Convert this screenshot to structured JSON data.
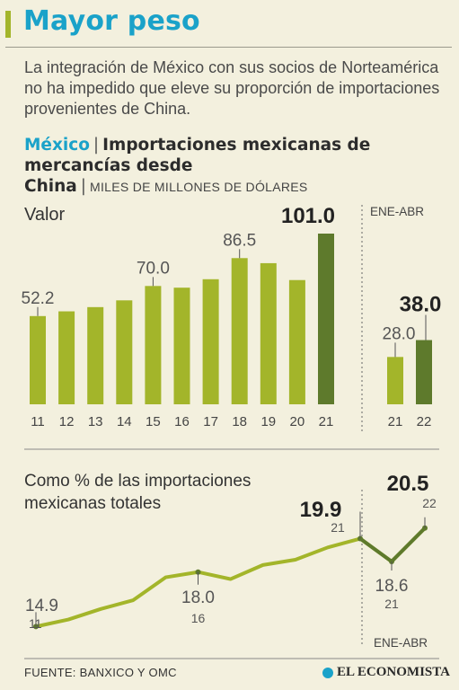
{
  "header": {
    "title": "Mayor peso"
  },
  "description": "La integración de México con sus socios de Norteamérica no ha impedido que eleve su proporción de importaciones provenientes de China.",
  "subtitle": {
    "country": "México",
    "separator": "|",
    "title_part1": "Importaciones mexicanas de mercancías desde",
    "title_part2": "China",
    "unit": "MILES DE MILLONES DE DÓLARES"
  },
  "colors": {
    "accent": "#1aa2c9",
    "bar_light": "#a3b52a",
    "bar_dark": "#5e7a2c",
    "background": "#f3f0de"
  },
  "footer": {
    "source": "FUENTE: BANXICO Y OMC",
    "brand": "EL ECONOMISTA",
    "brand_icon": "globe-icon"
  },
  "chart_data": [
    {
      "type": "bar",
      "title": "Valor",
      "categories": [
        "11",
        "12",
        "13",
        "14",
        "15",
        "16",
        "17",
        "18",
        "19",
        "20",
        "21"
      ],
      "values": [
        52.2,
        55.0,
        57.5,
        61.5,
        70.0,
        69.0,
        74.0,
        86.5,
        83.5,
        73.5,
        101.0
      ],
      "highlight": [
        "21"
      ],
      "labels": {
        "11": "52.2",
        "15": "70.0",
        "18": "86.5",
        "21": "101.0"
      },
      "ylim": [
        0,
        101
      ]
    },
    {
      "type": "bar",
      "title": "ENE-ABR",
      "categories": [
        "21",
        "22"
      ],
      "values": [
        28.0,
        38.0
      ],
      "highlight": [
        "22"
      ],
      "labels": {
        "21": "28.0",
        "22": "38.0"
      },
      "ylim": [
        0,
        101
      ]
    },
    {
      "type": "line",
      "title": "Como % de las importaciones mexicanas totales",
      "x": [
        "11",
        "12",
        "13",
        "14",
        "15",
        "16",
        "17",
        "18",
        "19",
        "20",
        "21"
      ],
      "values": [
        14.9,
        15.3,
        15.9,
        16.4,
        17.7,
        18.0,
        17.6,
        18.4,
        18.7,
        19.4,
        19.9
      ],
      "extension": {
        "label": "ENE-ABR",
        "x": [
          "21",
          "22"
        ],
        "values": [
          18.6,
          20.5
        ]
      },
      "labels": [
        {
          "x": "11",
          "value": "14.9",
          "year": "11"
        },
        {
          "x": "16",
          "value": "18.0",
          "year": "16"
        },
        {
          "x": "21",
          "value": "19.9",
          "year": "21"
        },
        {
          "x": "ENE-ABR 21",
          "value": "18.6",
          "year": "21"
        },
        {
          "x": "ENE-ABR 22",
          "value": "20.5",
          "year": "22"
        }
      ],
      "ylim": [
        14,
        21
      ]
    }
  ]
}
